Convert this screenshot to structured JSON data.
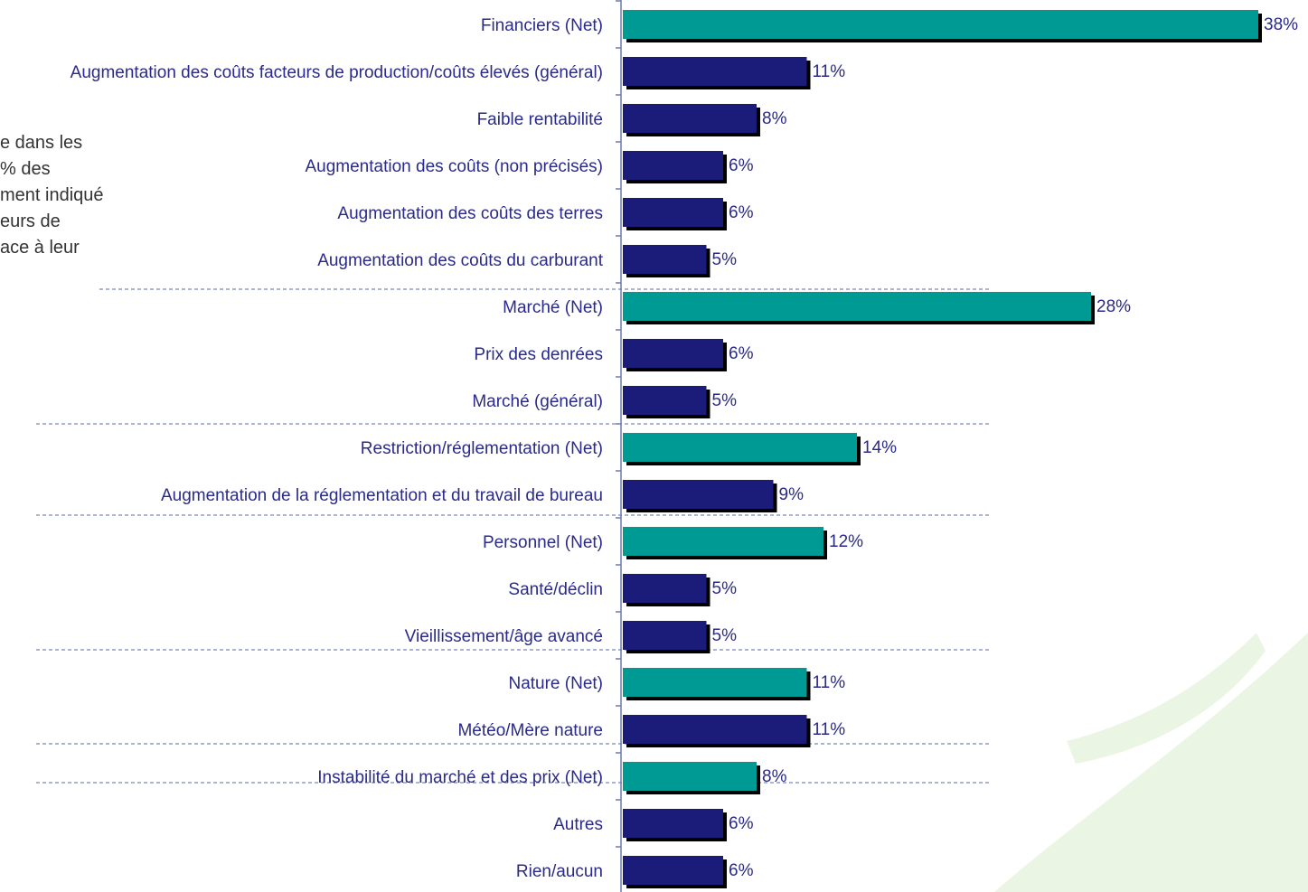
{
  "chart_data": {
    "type": "bar",
    "annotations": [
      "e dans les",
      "% des",
      "ment indiqué",
      "eurs de",
      "ace à leur"
    ],
    "categories": [
      "Financiers (Net)",
      "Augmentation des coûts facteurs de production/coûts élevés (général)",
      "Faible rentabilité",
      "Augmentation des coûts (non précisés)",
      "Augmentation des coûts des terres",
      "Augmentation des coûts du carburant",
      "Marché (Net)",
      "Prix des denrées",
      "Marché (général)",
      "Restriction/réglementation (Net)",
      "Augmentation de la réglementation et du travail de bureau",
      "Personnel (Net)",
      "Santé/déclin",
      "Vieillissement/âge avancé",
      "Nature (Net)",
      "Météo/Mère nature",
      "Instabilité du marché et des prix (Net)",
      "Autres",
      "Rien/aucun"
    ],
    "values": [
      38,
      11,
      8,
      6,
      6,
      5,
      28,
      6,
      5,
      14,
      9,
      12,
      5,
      5,
      11,
      11,
      8,
      6,
      6
    ],
    "value_labels": [
      "38%",
      "11%",
      "8%",
      "6%",
      "6%",
      "5%",
      "28%",
      "6%",
      "5%",
      "14%",
      "9%",
      "12%",
      "5%",
      "5%",
      "11%",
      "11%",
      "8%",
      "6%",
      "6%"
    ],
    "colors": [
      "#009a94",
      "#1b1b7a",
      "#1b1b7a",
      "#1b1b7a",
      "#1b1b7a",
      "#1b1b7a",
      "#009a94",
      "#1b1b7a",
      "#1b1b7a",
      "#009a94",
      "#1b1b7a",
      "#009a94",
      "#1b1b7a",
      "#1b1b7a",
      "#009a94",
      "#1b1b7a",
      "#009a94",
      "#1b1b7a",
      "#1b1b7a"
    ]
  }
}
